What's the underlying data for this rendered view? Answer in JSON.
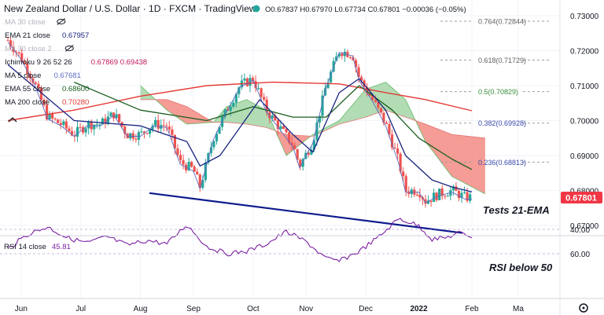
{
  "header": {
    "title": "New Zealand Dollar / U.S. Dollar · 1D · FXCM · TradingView",
    "ohlc": "O0.67837 H0.67970 L0.67734 C0.67801 −0.00036 (−0.05%)"
  },
  "legend": [
    {
      "label": "MA 30 close",
      "value": "",
      "color": "#9e9e9e",
      "faded": true
    },
    {
      "label": "EMA 21 close",
      "value": "0.67957",
      "color": "#1a237e"
    },
    {
      "label": "MA 30 close 2",
      "value": "",
      "color": "#9e9e9e",
      "faded": true
    },
    {
      "label": "Ichimoku 9 26 52 26",
      "value": "0.67869 0.69438",
      "color": "#c2185b"
    },
    {
      "label": "MA 5 close",
      "value": "0.67681",
      "color": "#5c6bc0"
    },
    {
      "label": "EMA 55 close",
      "value": "0.68600",
      "color": "#1b5e20"
    },
    {
      "label": "MA 200 close",
      "value": "0.70280",
      "color": "#e53935"
    }
  ],
  "annotations": {
    "main": "Tests 21-EMA",
    "rsi": "RSI below 50"
  },
  "rsi_label": {
    "name": "RSI 14 close",
    "value": "45.81"
  },
  "price_badge": "0.67801",
  "colors": {
    "bull": "#26a69a",
    "bear": "#ef5350",
    "ema21": "#1a237e",
    "ema55": "#1b5e20",
    "ma200": "#e53935",
    "ma5": "#5c6bc0",
    "trend": "#0d1b8c",
    "cloud_green": "#a5d6a7",
    "cloud_red": "#f28b82",
    "rsi_line": "#7b1fa2",
    "rsi_band": "#ede7f6",
    "badge": "#f23645"
  },
  "chart_data": {
    "type": "line",
    "title": "New Zealand Dollar / U.S. Dollar · 1D · FXCM",
    "price_axis": {
      "ylim": [
        0.665,
        0.735
      ],
      "ticks": [
        "0.73000",
        "0.72000",
        "0.71000",
        "0.70000",
        "0.69000",
        "0.68000",
        "0.67000"
      ]
    },
    "rsi_axis": {
      "ylim": [
        25,
        70
      ],
      "ticks": [
        "60.00",
        "40.00"
      ]
    },
    "x_ticks": [
      "Jun",
      "Jul",
      "Aug",
      "Sep",
      "Oct",
      "Nov",
      "Dec",
      "2022",
      "Feb",
      "Ma"
    ],
    "fib_levels": [
      {
        "label": "0.764(0.72844)",
        "value": 0.72844
      },
      {
        "label": "0.618(0.71729)",
        "value": 0.71729
      },
      {
        "label": "0.5(0.70829)",
        "value": 0.70829
      },
      {
        "label": "0.382(0.69928)",
        "value": 0.69928
      },
      {
        "label": "0.236(0.68813)",
        "value": 0.68813
      }
    ],
    "trendline": {
      "start": {
        "x": 2021.55,
        "y": 0.6815
      },
      "end": {
        "x": 2022.11,
        "y": 0.6683
      }
    },
    "close_path": [
      [
        2021.4,
        0.723
      ],
      [
        2021.42,
        0.718
      ],
      [
        2021.44,
        0.711
      ],
      [
        2021.46,
        0.701
      ],
      [
        2021.48,
        0.699
      ],
      [
        2021.5,
        0.696
      ],
      [
        2021.52,
        0.699
      ],
      [
        2021.54,
        0.699
      ],
      [
        2021.56,
        0.702
      ],
      [
        2021.58,
        0.696
      ],
      [
        2021.6,
        0.696
      ],
      [
        2021.62,
        0.699
      ],
      [
        2021.64,
        0.6985
      ],
      [
        2021.66,
        0.688
      ],
      [
        2021.68,
        0.686
      ],
      [
        2021.69,
        0.681
      ],
      [
        2021.71,
        0.695
      ],
      [
        2021.73,
        0.703
      ],
      [
        2021.75,
        0.71
      ],
      [
        2021.77,
        0.712
      ],
      [
        2021.79,
        0.703
      ],
      [
        2021.81,
        0.698
      ],
      [
        2021.83,
        0.693
      ],
      [
        2021.84,
        0.687
      ],
      [
        2021.86,
        0.694
      ],
      [
        2021.88,
        0.71
      ],
      [
        2021.9,
        0.72
      ],
      [
        2021.92,
        0.719
      ],
      [
        2021.93,
        0.712
      ],
      [
        2021.95,
        0.706
      ],
      [
        2021.97,
        0.699
      ],
      [
        2021.99,
        0.688
      ],
      [
        2022.0,
        0.68
      ],
      [
        2022.02,
        0.68
      ],
      [
        2022.03,
        0.677
      ],
      [
        2022.05,
        0.679
      ],
      [
        2022.07,
        0.68
      ],
      [
        2022.09,
        0.678
      ],
      [
        2022.1,
        0.678
      ]
    ],
    "ema21_path": [
      [
        2021.4,
        0.716
      ],
      [
        2021.5,
        0.7
      ],
      [
        2021.6,
        0.6985
      ],
      [
        2021.67,
        0.694
      ],
      [
        2021.69,
        0.687
      ],
      [
        2021.72,
        0.69
      ],
      [
        2021.78,
        0.706
      ],
      [
        2021.83,
        0.696
      ],
      [
        2021.86,
        0.691
      ],
      [
        2021.9,
        0.708
      ],
      [
        2021.93,
        0.712
      ],
      [
        2021.97,
        0.703
      ],
      [
        2022.0,
        0.69
      ],
      [
        2022.04,
        0.683
      ],
      [
        2022.07,
        0.681
      ],
      [
        2022.1,
        0.6796
      ]
    ],
    "ema55_path": [
      [
        2021.5,
        0.711
      ],
      [
        2021.6,
        0.703
      ],
      [
        2021.7,
        0.7
      ],
      [
        2021.77,
        0.704
      ],
      [
        2021.83,
        0.701
      ],
      [
        2021.88,
        0.701
      ],
      [
        2021.93,
        0.71
      ],
      [
        2021.98,
        0.703
      ],
      [
        2022.02,
        0.695
      ],
      [
        2022.07,
        0.689
      ],
      [
        2022.1,
        0.686
      ]
    ],
    "ma200_path": [
      [
        2021.4,
        0.7
      ],
      [
        2021.5,
        0.703
      ],
      [
        2021.6,
        0.707
      ],
      [
        2021.7,
        0.71
      ],
      [
        2021.8,
        0.711
      ],
      [
        2021.9,
        0.7105
      ],
      [
        2021.97,
        0.708
      ],
      [
        2022.03,
        0.706
      ],
      [
        2022.1,
        0.7028
      ]
    ],
    "cloud_span_a": [
      [
        2021.6,
        0.71
      ],
      [
        2021.64,
        0.703
      ],
      [
        2021.67,
        0.699
      ],
      [
        2021.71,
        0.6995
      ],
      [
        2021.73,
        0.704
      ],
      [
        2021.76,
        0.706
      ],
      [
        2021.79,
        0.703
      ],
      [
        2021.82,
        0.69
      ],
      [
        2021.86,
        0.696
      ],
      [
        2021.9,
        0.7
      ],
      [
        2021.94,
        0.709
      ],
      [
        2021.97,
        0.711
      ],
      [
        2022.0,
        0.706
      ],
      [
        2022.03,
        0.694
      ],
      [
        2022.07,
        0.684
      ],
      [
        2022.12,
        0.679
      ]
    ],
    "cloud_span_b": [
      [
        2021.6,
        0.706
      ],
      [
        2021.64,
        0.706
      ],
      [
        2021.67,
        0.704
      ],
      [
        2021.71,
        0.6995
      ],
      [
        2021.73,
        0.6995
      ],
      [
        2021.76,
        0.699
      ],
      [
        2021.79,
        0.698
      ],
      [
        2021.82,
        0.696
      ],
      [
        2021.86,
        0.6955
      ],
      [
        2021.9,
        0.699
      ],
      [
        2021.94,
        0.701
      ],
      [
        2021.97,
        0.703
      ],
      [
        2022.0,
        0.701
      ],
      [
        2022.03,
        0.699
      ],
      [
        2022.07,
        0.696
      ],
      [
        2022.12,
        0.695
      ]
    ],
    "rsi_path": [
      [
        2021.4,
        56
      ],
      [
        2021.43,
        44
      ],
      [
        2021.46,
        38
      ],
      [
        2021.49,
        47
      ],
      [
        2021.52,
        51
      ],
      [
        2021.55,
        46
      ],
      [
        2021.58,
        53
      ],
      [
        2021.61,
        49
      ],
      [
        2021.64,
        52
      ],
      [
        2021.67,
        36
      ],
      [
        2021.7,
        54
      ],
      [
        2021.73,
        60
      ],
      [
        2021.76,
        58
      ],
      [
        2021.79,
        52
      ],
      [
        2021.82,
        42
      ],
      [
        2021.85,
        50
      ],
      [
        2021.88,
        64
      ],
      [
        2021.9,
        66
      ],
      [
        2021.93,
        58
      ],
      [
        2021.96,
        46
      ],
      [
        2021.99,
        31
      ],
      [
        2022.02,
        37
      ],
      [
        2022.04,
        48
      ],
      [
        2022.06,
        47
      ],
      [
        2022.08,
        43
      ],
      [
        2022.1,
        45.81
      ]
    ]
  }
}
